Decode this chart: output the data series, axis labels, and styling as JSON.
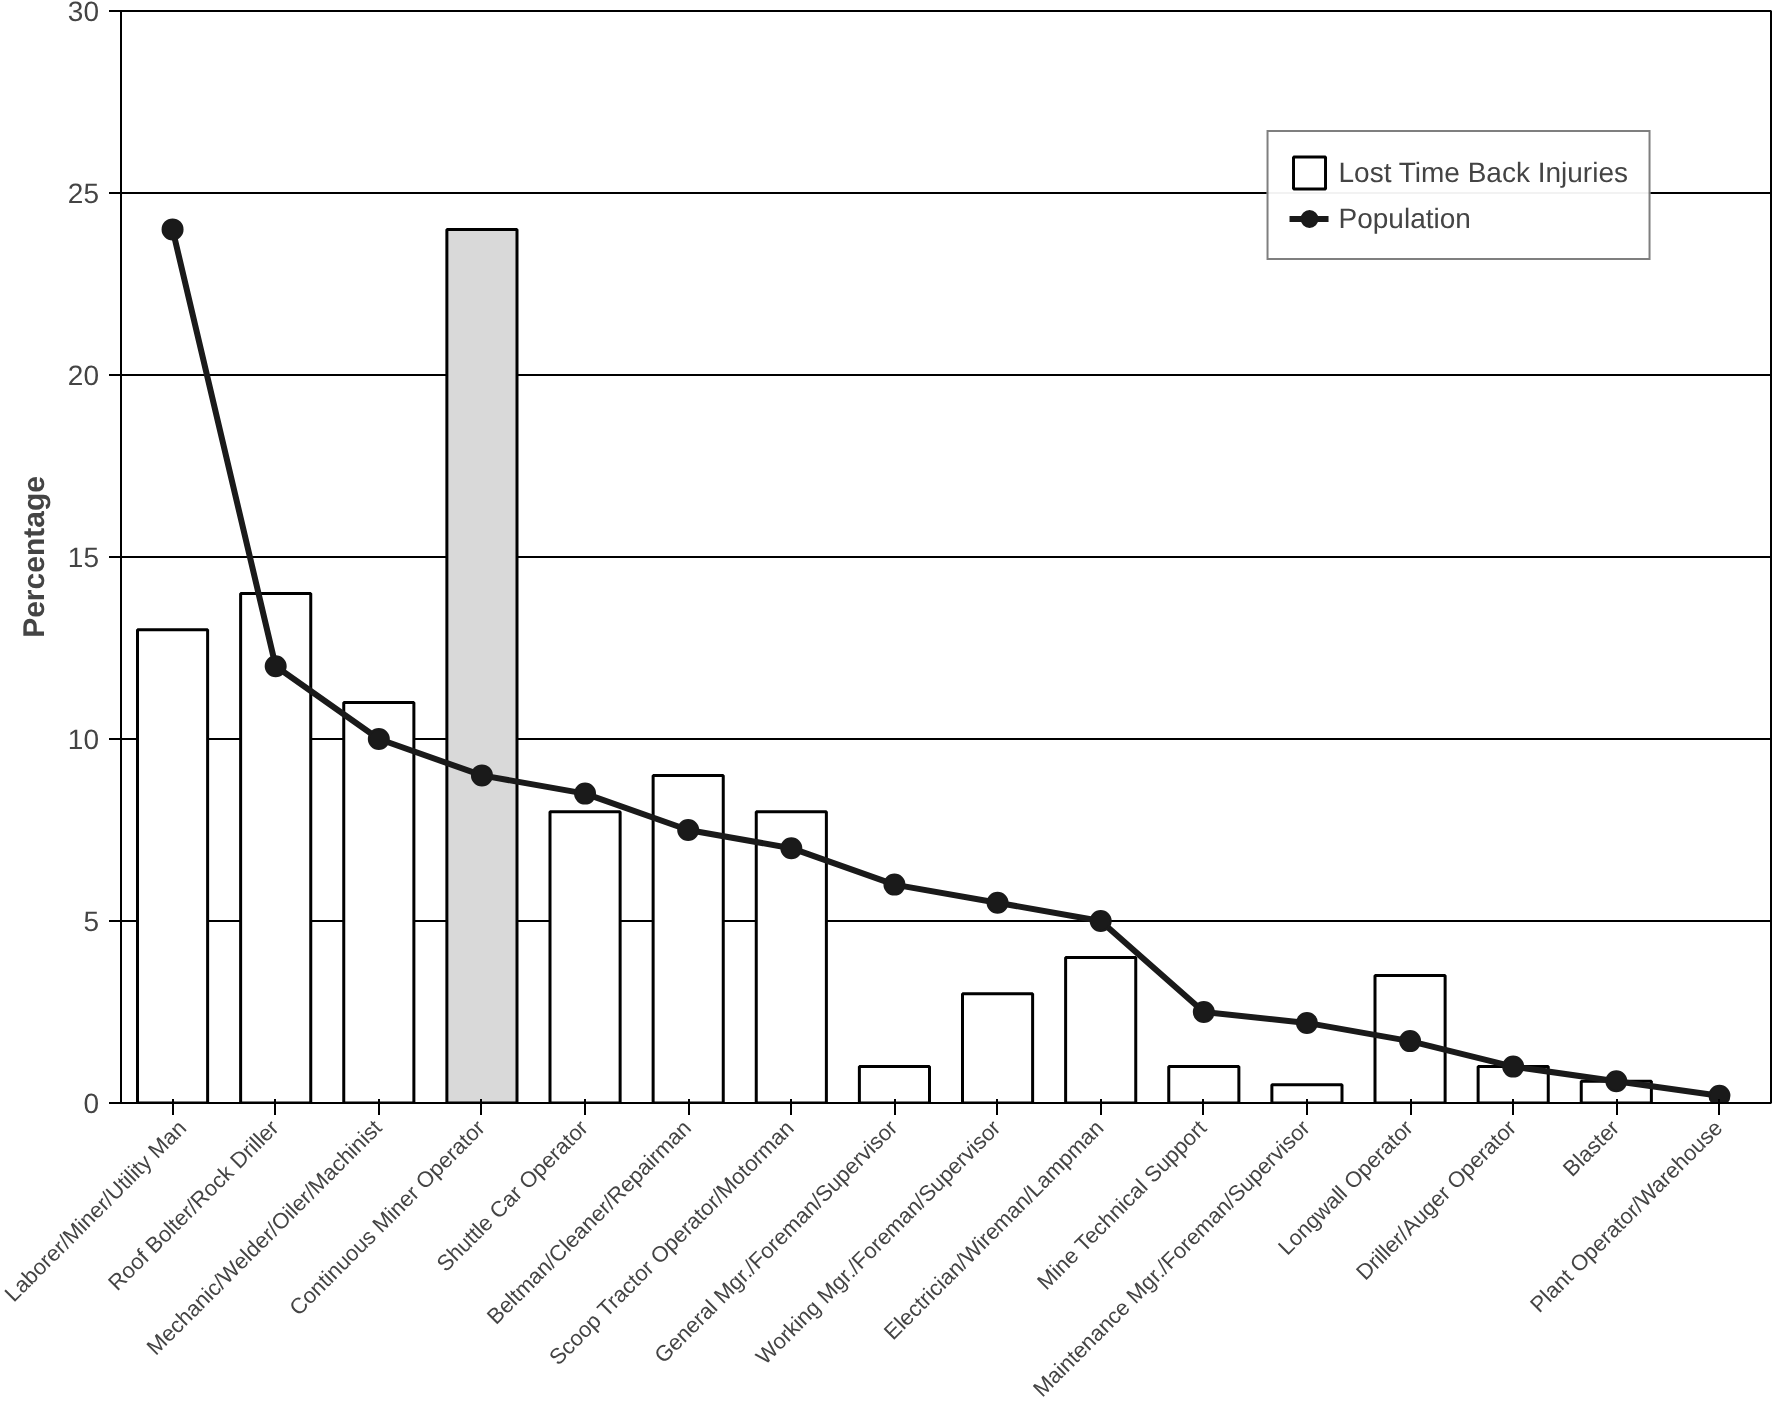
{
  "chart_data": {
    "type": "bar",
    "ylabel": "Percentage",
    "categories": [
      "Laborer/Miner/Utility Man",
      "Roof Bolter/Rock Driller",
      "Mechanic/Welder/Oiler/Machinist",
      "Continuous Miner Operator",
      "Shuttle Car Operator",
      "Beltman/Cleaner/Repairman",
      "Scoop Tractor Operator/Motorman",
      "General Mgr./Foreman/Supervisor",
      "Working Mgr./Foreman/Supervisor",
      "Electrician/Wireman/Lampman",
      "Mine Technical Support",
      "Maintenance Mgr./Foreman/Supervisor",
      "Longwall Operator",
      "Driller/Auger Operator",
      "Blaster",
      "Plant Operator/Warehouse"
    ],
    "series": [
      {
        "name": "Lost Time Back Injuries",
        "color": "#ffffff",
        "colors": [
          "#ffffff",
          "#ffffff",
          "#ffffff",
          "#d9d9d9",
          "#ffffff",
          "#ffffff",
          "#ffffff",
          "#ffffff",
          "#ffffff",
          "#ffffff",
          "#ffffff",
          "#ffffff",
          "#ffffff",
          "#ffffff",
          "#ffffff",
          "#ffffff"
        ],
        "values": [
          13,
          14,
          11,
          24,
          8,
          9,
          8,
          1,
          3,
          4,
          1,
          0.5,
          3.5,
          1,
          0.6,
          null
        ]
      },
      {
        "name": "Population",
        "type": "line",
        "color": "#1a1a1a",
        "marker": "circle",
        "values": [
          24,
          12,
          10,
          9,
          8.5,
          7.5,
          7,
          6,
          5.5,
          5,
          2.5,
          2.2,
          1.7,
          1,
          0.6,
          0.2
        ]
      }
    ],
    "ylim": [
      0,
      30
    ],
    "yticks": [
      0,
      5,
      10,
      15,
      20,
      25,
      30
    ],
    "grid": "y",
    "legend": "top right"
  }
}
